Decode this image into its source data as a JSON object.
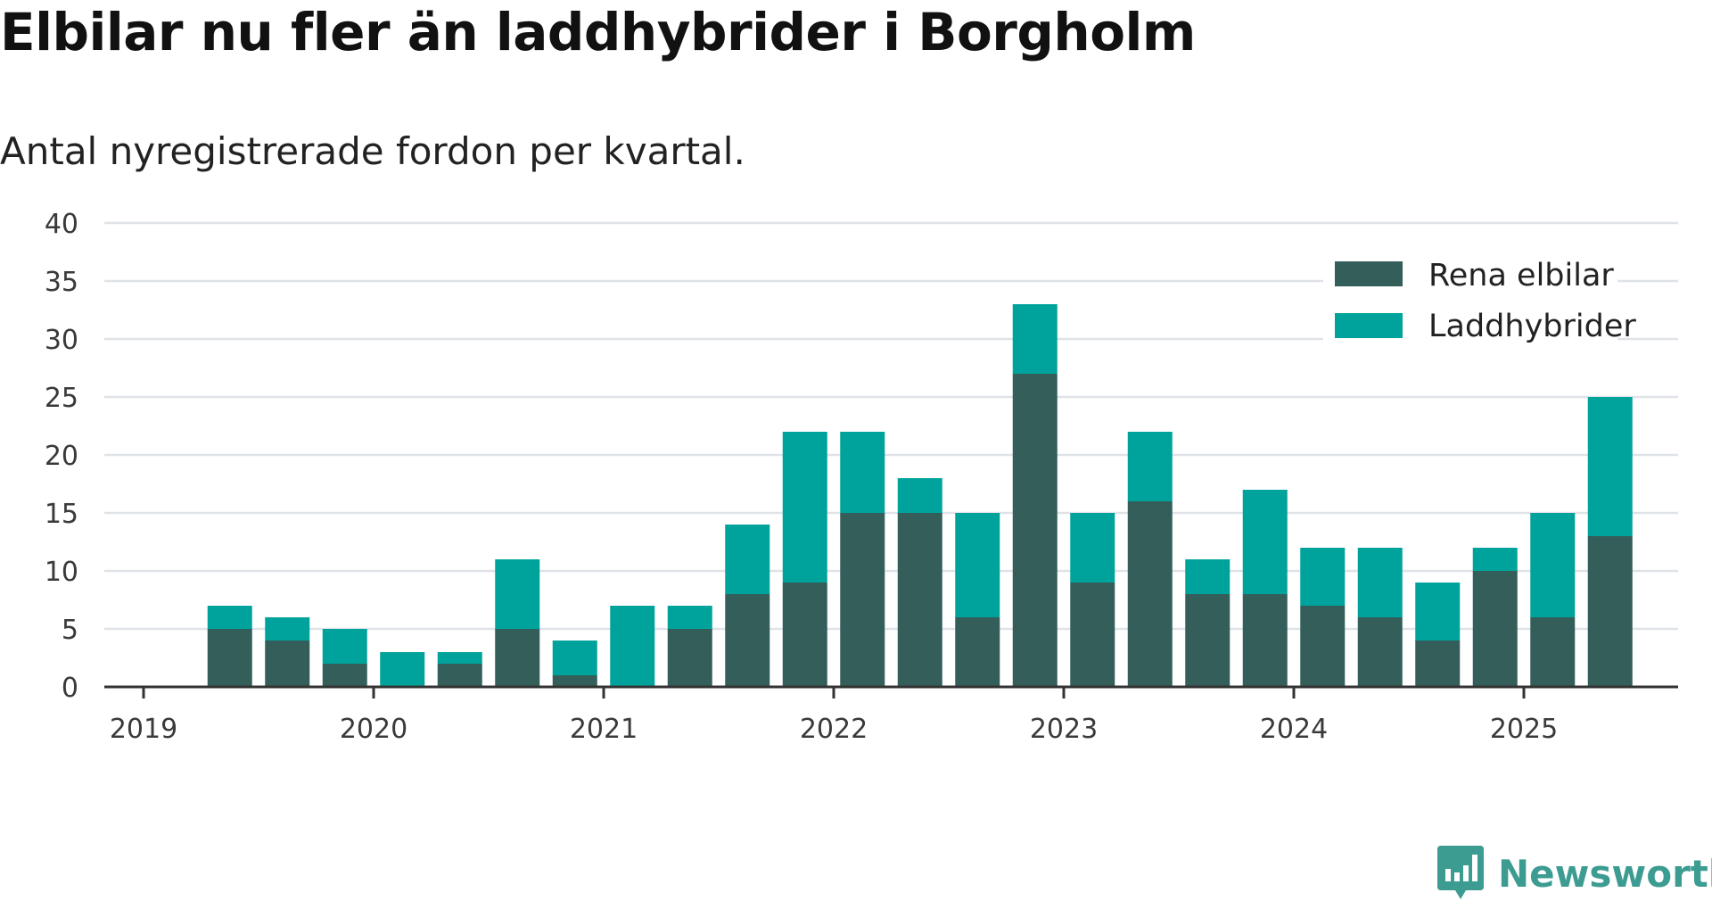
{
  "title": "Elbilar nu fler än laddhybrider i Borgholm",
  "subtitle": "Antal nyregistrerade fordon per kvartal.",
  "brand": {
    "name": "Newsworthy",
    "icon": "newsworthy-logo-icon",
    "color": "#3d9c92"
  },
  "chart_data": {
    "type": "bar",
    "stacked": true,
    "categories": [
      "2019 Q2",
      "2019 Q3",
      "2019 Q4",
      "2020 Q1",
      "2020 Q2",
      "2020 Q3",
      "2020 Q4",
      "2021 Q1",
      "2021 Q2",
      "2021 Q3",
      "2021 Q4",
      "2022 Q1",
      "2022 Q2",
      "2022 Q3",
      "2022 Q4",
      "2023 Q1",
      "2023 Q2",
      "2023 Q3",
      "2023 Q4",
      "2024 Q1",
      "2024 Q2",
      "2024 Q3",
      "2024 Q4",
      "2025 Q1",
      "2025 Q2"
    ],
    "series": [
      {
        "name": "Rena elbilar",
        "color": "#335e5a",
        "values": [
          5,
          4,
          2,
          0,
          2,
          5,
          1,
          0,
          5,
          8,
          9,
          15,
          15,
          6,
          27,
          9,
          16,
          8,
          8,
          7,
          6,
          4,
          10,
          6,
          13
        ]
      },
      {
        "name": "Laddhybrider",
        "color": "#00a39b",
        "values": [
          2,
          2,
          3,
          3,
          1,
          6,
          3,
          7,
          2,
          6,
          13,
          7,
          3,
          9,
          6,
          6,
          6,
          3,
          9,
          5,
          6,
          5,
          2,
          9,
          12
        ]
      }
    ],
    "x_tick_labels": [
      "2019",
      "2020",
      "2021",
      "2022",
      "2023",
      "2024",
      "2025"
    ],
    "y_ticks": [
      0,
      5,
      10,
      15,
      20,
      25,
      30,
      35,
      40
    ],
    "ylim": [
      0,
      40
    ],
    "grid": true,
    "legend_position": "top-right"
  }
}
